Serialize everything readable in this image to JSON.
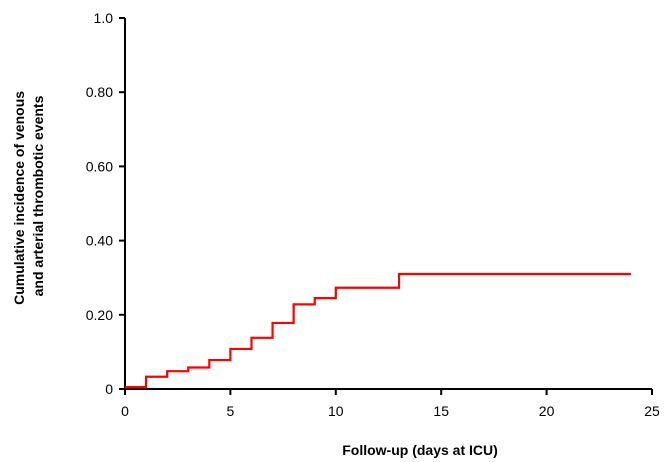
{
  "chart_data": {
    "type": "line",
    "step": true,
    "title": "",
    "xlabel": "Follow-up (days at ICU)",
    "ylabel_lines": [
      "Cumulative incidence of venous",
      "and arterial thrombotic events"
    ],
    "xlim": [
      0,
      25
    ],
    "ylim": [
      0,
      1.0
    ],
    "x_ticks": [
      0,
      5,
      10,
      15,
      20,
      25
    ],
    "x_tick_labels": [
      "0",
      "5",
      "10",
      "15",
      "20",
      "25"
    ],
    "y_ticks": [
      0,
      0.2,
      0.4,
      0.6,
      0.8,
      1.0
    ],
    "y_tick_labels": [
      "0",
      "0.20",
      "0.40",
      "0.60",
      "0.80",
      "1.0"
    ],
    "grid": false,
    "legend": "none",
    "series": [
      {
        "color": "#ff0000",
        "x": [
          0,
          1,
          2,
          3,
          4,
          5,
          6,
          7,
          8,
          9,
          10,
          13,
          24
        ],
        "y": [
          0.005,
          0.033,
          0.048,
          0.058,
          0.078,
          0.108,
          0.138,
          0.178,
          0.228,
          0.245,
          0.273,
          0.31,
          0.31
        ]
      }
    ]
  }
}
